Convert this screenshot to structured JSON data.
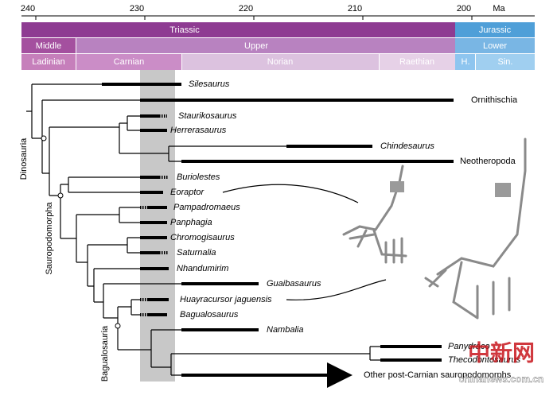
{
  "axis": {
    "ticks": [
      240,
      230,
      220,
      210,
      200
    ],
    "unit": "Ma"
  },
  "timescale": {
    "periods": [
      "Triassic",
      "Jurassic"
    ],
    "epochs": [
      "Middle",
      "Upper",
      "Lower"
    ],
    "stages": [
      "Ladinian",
      "Carnian",
      "Norian",
      "Raethian",
      "H.",
      "Sin."
    ]
  },
  "taxa": [
    "Silesaurus",
    "Ornithischia",
    "Staurikosaurus",
    "Herrerasaurus",
    "Chindesaurus",
    "Neotheropoda",
    "Buriolestes",
    "Eoraptor",
    "Pampadromaeus",
    "Panphagia",
    "Chromogisaurus",
    "Saturnalia",
    "Nhandumirim",
    "Guaibasaurus",
    "Huayracursor jaguensis",
    "Bagualosaurus",
    "Nambalia",
    "Panydraco",
    "Thecodontosaurus",
    "Other post-Carnian sauropodomorphs"
  ],
  "clades": [
    "Dinosauria",
    "Sauropodomorpha",
    "Bagualosauria"
  ],
  "watermark": {
    "logo": "中新网",
    "site": "chinanews.com.cn"
  }
}
